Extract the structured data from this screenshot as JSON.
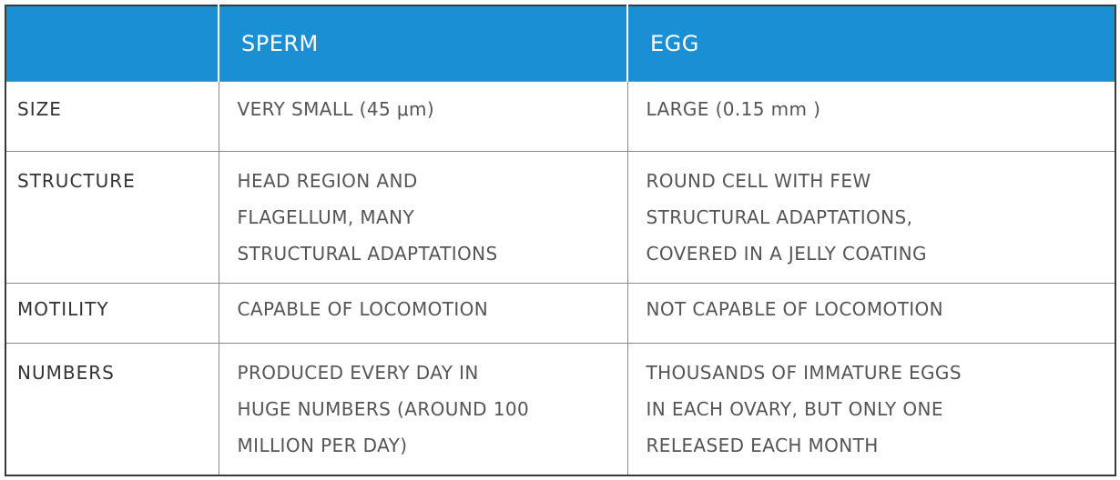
{
  "table": {
    "headers": [
      "",
      "SPERM",
      "EGG"
    ],
    "rows": [
      {
        "label": "SIZE",
        "sperm": [
          "VERY SMALL (45 μm)"
        ],
        "egg": [
          "LARGE (0.15  mm )"
        ]
      },
      {
        "label": "STRUCTURE",
        "sperm": [
          "HEAD REGION AND",
          "FLAGELLUM, MANY",
          "STRUCTURAL ADAPTATIONS"
        ],
        "egg": [
          "ROUND CELL WITH FEW",
          "STRUCTURAL ADAPTATIONS,",
          "COVERED IN A JELLY COATING"
        ]
      },
      {
        "label": "MOTILITY",
        "sperm": [
          "CAPABLE OF LOCOMOTION"
        ],
        "egg": [
          "NOT CAPABLE OF LOCOMOTION"
        ]
      },
      {
        "label": "NUMBERS",
        "sperm": [
          "PRODUCED EVERY DAY IN",
          "HUGE NUMBERS (AROUND 100",
          "MILLION PER DAY)"
        ],
        "egg": [
          "THOUSANDS OF IMMATURE EGGS",
          "IN EACH OVARY, BUT ONLY ONE",
          "RELEASED EACH MONTH"
        ]
      }
    ]
  },
  "colors": {
    "header_bg": "#1a8fd3",
    "header_text": "#ffffff",
    "border": "#8a8a8a",
    "body_text": "#555555"
  }
}
